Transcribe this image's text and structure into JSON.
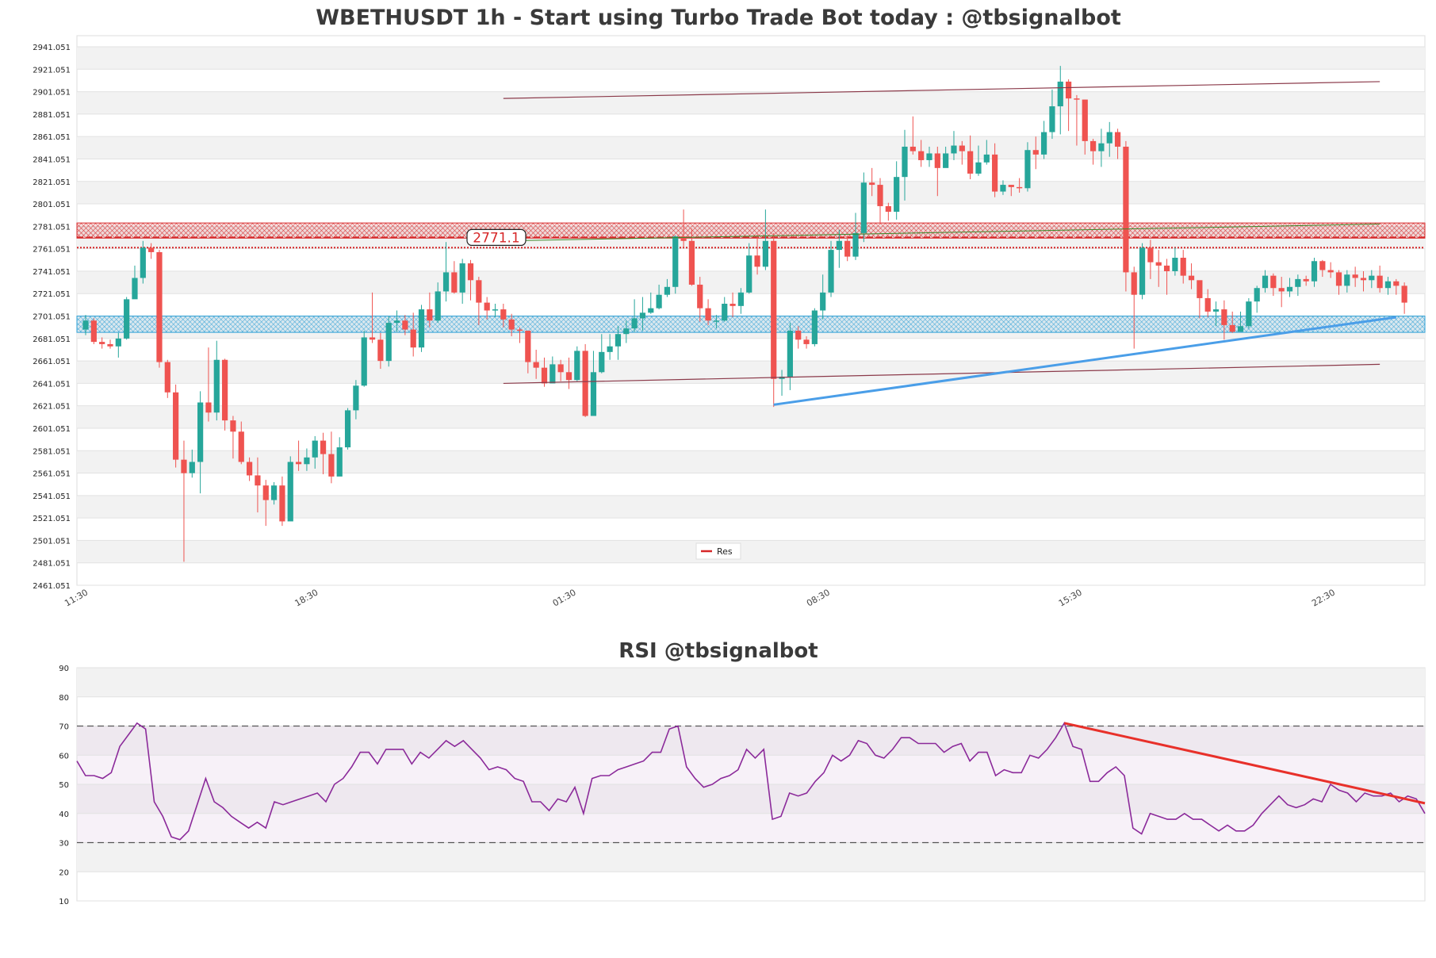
{
  "chart_data": [
    {
      "type": "candlestick",
      "title": "WBETHUSDT 1h - Start using Turbo Trade Bot today : @tbsignalbot",
      "y_ticks": [
        "2461.051",
        "2481.051",
        "2501.051",
        "2521.051",
        "2541.051",
        "2561.051",
        "2581.051",
        "2601.051",
        "2621.051",
        "2641.051",
        "2661.051",
        "2681.051",
        "2701.051",
        "2721.051",
        "2741.051",
        "2761.051",
        "2781.051",
        "2801.051",
        "2821.051",
        "2841.051",
        "2861.051",
        "2881.051",
        "2901.051",
        "2921.051",
        "2941.051"
      ],
      "ylim": [
        2461.051,
        2941.051
      ],
      "x_ticks": [
        "11:30",
        "18:30",
        "01:30",
        "08:30",
        "15:30",
        "22:30"
      ],
      "price_label": "2771.1",
      "legend": [
        "Res"
      ],
      "grid": true,
      "colors": {
        "up": "#26a69a",
        "down": "#ef5350",
        "band_blue": "#2a9fd6",
        "band_red": "#d62728",
        "trend_blue": "#4a9ee8",
        "channel": "#8b3a4a"
      },
      "zones": [
        {
          "type": "resistance",
          "from": 2770.5,
          "to": 2784.0
        },
        {
          "type": "support",
          "from": 2686.5,
          "to": 2701.0
        }
      ],
      "levels": [
        {
          "kind": "dashed",
          "value": 2771.1
        },
        {
          "kind": "dotted",
          "value": 2762.0
        }
      ],
      "candles": [
        [
          2689,
          2697,
          2702,
          2684
        ],
        [
          2697,
          2678,
          2699,
          2676
        ],
        [
          2678,
          2676,
          2682,
          2672
        ],
        [
          2676,
          2674,
          2680,
          2672
        ],
        [
          2674,
          2681,
          2686,
          2664
        ],
        [
          2681,
          2716,
          2718,
          2680
        ],
        [
          2716,
          2735,
          2746,
          2726
        ],
        [
          2735,
          2762,
          2768,
          2730
        ],
        [
          2762,
          2758,
          2766,
          2752
        ],
        [
          2758,
          2660,
          2760,
          2655
        ],
        [
          2660,
          2633,
          2662,
          2628
        ],
        [
          2633,
          2573,
          2640,
          2566
        ],
        [
          2573,
          2561,
          2590,
          2482
        ],
        [
          2561,
          2571,
          2582,
          2557
        ],
        [
          2571,
          2624,
          2634,
          2543
        ],
        [
          2624,
          2615,
          2673,
          2607
        ],
        [
          2615,
          2662,
          2679,
          2608
        ],
        [
          2662,
          2608,
          2663,
          2599
        ],
        [
          2608,
          2598,
          2612,
          2574
        ],
        [
          2598,
          2571,
          2607,
          2569
        ],
        [
          2571,
          2559,
          2575,
          2554
        ],
        [
          2559,
          2550,
          2575,
          2526
        ],
        [
          2550,
          2537,
          2555,
          2514
        ],
        [
          2537,
          2550,
          2553,
          2533
        ],
        [
          2550,
          2518,
          2558,
          2514
        ],
        [
          2518,
          2571,
          2576,
          2520
        ],
        [
          2571,
          2569,
          2590,
          2563
        ],
        [
          2569,
          2575,
          2583,
          2563
        ],
        [
          2575,
          2590,
          2594,
          2565
        ],
        [
          2590,
          2578,
          2597,
          2560
        ],
        [
          2578,
          2558,
          2598,
          2552
        ],
        [
          2558,
          2584,
          2593,
          2566
        ],
        [
          2584,
          2617,
          2619,
          2582
        ],
        [
          2617,
          2639,
          2644,
          2609
        ],
        [
          2639,
          2682,
          2688,
          2638
        ],
        [
          2682,
          2680,
          2722,
          2677
        ],
        [
          2680,
          2661,
          2686,
          2654
        ],
        [
          2661,
          2695,
          2701,
          2656
        ],
        [
          2695,
          2697,
          2706,
          2687
        ],
        [
          2697,
          2689,
          2702,
          2684
        ],
        [
          2689,
          2673,
          2704,
          2665
        ],
        [
          2673,
          2707,
          2711,
          2669
        ],
        [
          2707,
          2697,
          2722,
          2691
        ],
        [
          2697,
          2723,
          2731,
          2695
        ],
        [
          2723,
          2740,
          2767,
          2714
        ],
        [
          2740,
          2722,
          2750,
          2721
        ],
        [
          2722,
          2748,
          2752,
          2712
        ],
        [
          2748,
          2733,
          2751,
          2715
        ],
        [
          2733,
          2713,
          2736,
          2693
        ],
        [
          2713,
          2706,
          2718,
          2698
        ],
        [
          2706,
          2707,
          2712,
          2700
        ],
        [
          2707,
          2698,
          2712,
          2691
        ],
        [
          2698,
          2689,
          2703,
          2683
        ],
        [
          2689,
          2688,
          2691,
          2677
        ],
        [
          2688,
          2660,
          2688,
          2650
        ],
        [
          2660,
          2655,
          2671,
          2645
        ],
        [
          2655,
          2641,
          2664,
          2638
        ],
        [
          2641,
          2658,
          2665,
          2643
        ],
        [
          2658,
          2651,
          2662,
          2643
        ],
        [
          2651,
          2644,
          2664,
          2636
        ],
        [
          2644,
          2670,
          2674,
          2643
        ],
        [
          2670,
          2612,
          2676,
          2611
        ],
        [
          2612,
          2651,
          2670,
          2617
        ],
        [
          2651,
          2669,
          2685,
          2650
        ],
        [
          2669,
          2674,
          2685,
          2662
        ],
        [
          2674,
          2685,
          2692,
          2662
        ],
        [
          2685,
          2690,
          2697,
          2677
        ],
        [
          2690,
          2699,
          2716,
          2687
        ],
        [
          2699,
          2704,
          2718,
          2688
        ],
        [
          2704,
          2708,
          2722,
          2703
        ],
        [
          2708,
          2720,
          2729,
          2707
        ],
        [
          2720,
          2727,
          2734,
          2718
        ],
        [
          2727,
          2772,
          2773,
          2721
        ],
        [
          2772,
          2768,
          2796,
          2762
        ],
        [
          2768,
          2729,
          2779,
          2728
        ],
        [
          2729,
          2708,
          2736,
          2696
        ],
        [
          2708,
          2697,
          2716,
          2693
        ],
        [
          2697,
          2697,
          2702,
          2690
        ],
        [
          2697,
          2712,
          2718,
          2696
        ],
        [
          2712,
          2710,
          2722,
          2700
        ],
        [
          2710,
          2722,
          2726,
          2703
        ],
        [
          2722,
          2755,
          2766,
          2721
        ],
        [
          2755,
          2745,
          2774,
          2738
        ],
        [
          2745,
          2768,
          2796,
          2742
        ],
        [
          2768,
          2645,
          2775,
          2620
        ],
        [
          2645,
          2647,
          2653,
          2630
        ],
        [
          2647,
          2688,
          2695,
          2635
        ],
        [
          2688,
          2680,
          2692,
          2672
        ],
        [
          2680,
          2676,
          2683,
          2672
        ],
        [
          2676,
          2706,
          2708,
          2674
        ],
        [
          2706,
          2722,
          2738,
          2698
        ],
        [
          2722,
          2760,
          2768,
          2718
        ],
        [
          2760,
          2768,
          2778,
          2744
        ],
        [
          2768,
          2754,
          2773,
          2750
        ],
        [
          2754,
          2775,
          2793,
          2751
        ],
        [
          2775,
          2820,
          2829,
          2767
        ],
        [
          2820,
          2818,
          2833,
          2808
        ],
        [
          2818,
          2799,
          2824,
          2783
        ],
        [
          2799,
          2794,
          2802,
          2786
        ],
        [
          2794,
          2825,
          2839,
          2787
        ],
        [
          2825,
          2852,
          2867,
          2804
        ],
        [
          2852,
          2848,
          2879,
          2845
        ],
        [
          2848,
          2840,
          2858,
          2834
        ],
        [
          2840,
          2846,
          2852,
          2834
        ],
        [
          2846,
          2833,
          2852,
          2808
        ],
        [
          2833,
          2846,
          2852,
          2835
        ],
        [
          2846,
          2853,
          2866,
          2840
        ],
        [
          2853,
          2848,
          2857,
          2836
        ],
        [
          2848,
          2828,
          2862,
          2823
        ],
        [
          2828,
          2838,
          2853,
          2826
        ],
        [
          2838,
          2845,
          2858,
          2836
        ],
        [
          2845,
          2812,
          2855,
          2807
        ],
        [
          2812,
          2818,
          2822,
          2809
        ],
        [
          2818,
          2816,
          2818,
          2808
        ],
        [
          2816,
          2815,
          2824,
          2811
        ],
        [
          2815,
          2849,
          2856,
          2812
        ],
        [
          2849,
          2845,
          2861,
          2832
        ],
        [
          2845,
          2865,
          2875,
          2841
        ],
        [
          2865,
          2888,
          2903,
          2859
        ],
        [
          2888,
          2910,
          2924,
          2863
        ],
        [
          2910,
          2895,
          2912,
          2866
        ],
        [
          2895,
          2894,
          2898,
          2853
        ],
        [
          2894,
          2857,
          2894,
          2845
        ],
        [
          2857,
          2848,
          2859,
          2836
        ],
        [
          2848,
          2855,
          2868,
          2834
        ],
        [
          2855,
          2865,
          2874,
          2843
        ],
        [
          2865,
          2852,
          2868,
          2841
        ],
        [
          2852,
          2740,
          2857,
          2723
        ],
        [
          2740,
          2720,
          2745,
          2672
        ],
        [
          2720,
          2762,
          2766,
          2716
        ],
        [
          2762,
          2749,
          2769,
          2734
        ],
        [
          2749,
          2746,
          2760,
          2727
        ],
        [
          2746,
          2741,
          2752,
          2720
        ],
        [
          2741,
          2753,
          2762,
          2737
        ],
        [
          2753,
          2737,
          2760,
          2730
        ],
        [
          2737,
          2733,
          2748,
          2725
        ],
        [
          2733,
          2717,
          2732,
          2699
        ],
        [
          2717,
          2705,
          2725,
          2700
        ],
        [
          2705,
          2707,
          2714,
          2692
        ],
        [
          2707,
          2693,
          2715,
          2680
        ],
        [
          2693,
          2687,
          2705,
          2686
        ],
        [
          2687,
          2692,
          2705,
          2688
        ],
        [
          2692,
          2714,
          2717,
          2690
        ],
        [
          2714,
          2726,
          2728,
          2704
        ],
        [
          2726,
          2737,
          2742,
          2722
        ],
        [
          2737,
          2726,
          2739,
          2719
        ],
        [
          2726,
          2723,
          2736,
          2709
        ],
        [
          2723,
          2727,
          2735,
          2718
        ],
        [
          2727,
          2734,
          2738,
          2719
        ],
        [
          2734,
          2732,
          2737,
          2728
        ],
        [
          2732,
          2750,
          2753,
          2727
        ],
        [
          2750,
          2742,
          2751,
          2736
        ],
        [
          2742,
          2740,
          2749,
          2735
        ],
        [
          2740,
          2728,
          2742,
          2720
        ],
        [
          2728,
          2738,
          2742,
          2722
        ],
        [
          2738,
          2735,
          2745,
          2727
        ],
        [
          2735,
          2733,
          2741,
          2723
        ],
        [
          2733,
          2737,
          2742,
          2726
        ],
        [
          2737,
          2726,
          2746,
          2722
        ],
        [
          2726,
          2732,
          2736,
          2720
        ],
        [
          2732,
          2728,
          2734,
          2720
        ],
        [
          2728,
          2713,
          2731,
          2703
        ]
      ]
    },
    {
      "type": "line",
      "title": "RSI @tbsignalbot",
      "y_ticks": [
        "10",
        "20",
        "30",
        "40",
        "50",
        "60",
        "70",
        "80",
        "90"
      ],
      "ylim": [
        10,
        90
      ],
      "ref_lines": [
        70,
        30
      ],
      "colors": {
        "line": "#8b2a9a",
        "trend": "#e8302a"
      },
      "values": [
        58,
        53,
        53,
        52,
        54,
        63,
        67,
        71,
        69,
        44,
        39,
        32,
        31,
        34,
        43,
        52,
        44,
        42,
        39,
        37,
        35,
        37,
        35,
        44,
        43,
        44,
        45,
        46,
        47,
        44,
        50,
        52,
        56,
        61,
        61,
        57,
        62,
        62,
        62,
        57,
        61,
        59,
        62,
        65,
        63,
        65,
        62,
        59,
        55,
        56,
        55,
        52,
        51,
        44,
        44,
        41,
        45,
        44,
        49,
        40,
        52,
        53,
        53,
        55,
        56,
        57,
        58,
        61,
        61,
        69,
        70,
        56,
        52,
        49,
        50,
        52,
        53,
        55,
        62,
        59,
        62,
        38,
        39,
        47,
        46,
        47,
        51,
        54,
        60,
        58,
        60,
        65,
        64,
        60,
        59,
        62,
        66,
        66,
        64,
        64,
        64,
        61,
        63,
        64,
        58,
        61,
        61,
        53,
        55,
        54,
        54,
        60,
        59,
        62,
        66,
        71,
        63,
        62,
        51,
        51,
        54,
        56,
        53,
        35,
        33,
        40,
        39,
        38,
        38,
        40,
        38,
        38,
        36,
        34,
        36,
        34,
        34,
        36,
        40,
        43,
        46,
        43,
        42,
        43,
        45,
        44,
        50,
        48,
        47,
        44,
        47,
        46,
        46,
        47,
        44,
        46,
        45,
        40
      ]
    }
  ]
}
